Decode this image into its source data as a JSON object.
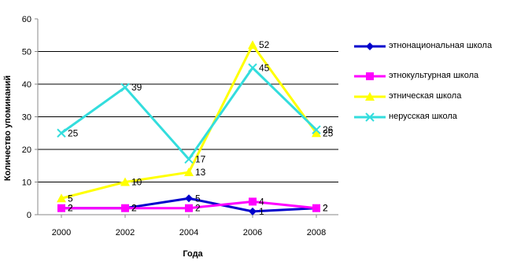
{
  "chart_data": {
    "type": "line",
    "x": [
      "2000",
      "2002",
      "2004",
      "2006",
      "2008"
    ],
    "ylim": [
      0,
      60
    ],
    "yticks": [
      0,
      10,
      20,
      30,
      40,
      50,
      60
    ],
    "xlabel": "Года",
    "ylabel": "Количество упоминаний",
    "grid": "horizontal",
    "legend_position": "right",
    "series": [
      {
        "name": "этнонациональная школа",
        "values": [
          2,
          2,
          5,
          1,
          2
        ],
        "labels": [
          "2",
          "2",
          "5",
          "1",
          "2"
        ],
        "color": "#0000cc",
        "marker": "diamond"
      },
      {
        "name": "этнокультурная школа",
        "values": [
          2,
          2,
          2,
          4,
          2
        ],
        "labels": [
          "2",
          "2",
          "2",
          "4",
          "2"
        ],
        "color": "#ff00ff",
        "marker": "square"
      },
      {
        "name": "этническая школа",
        "values": [
          5,
          10,
          13,
          52,
          25
        ],
        "labels": [
          "5",
          "10",
          "13",
          "52",
          "25"
        ],
        "color": "#ffff00",
        "marker": "triangle"
      },
      {
        "name": "нерусская школа",
        "values": [
          25,
          39,
          17,
          45,
          26
        ],
        "labels": [
          "25",
          "39",
          "17",
          "45",
          "26"
        ],
        "color": "#33dddd",
        "marker": "x"
      }
    ]
  }
}
